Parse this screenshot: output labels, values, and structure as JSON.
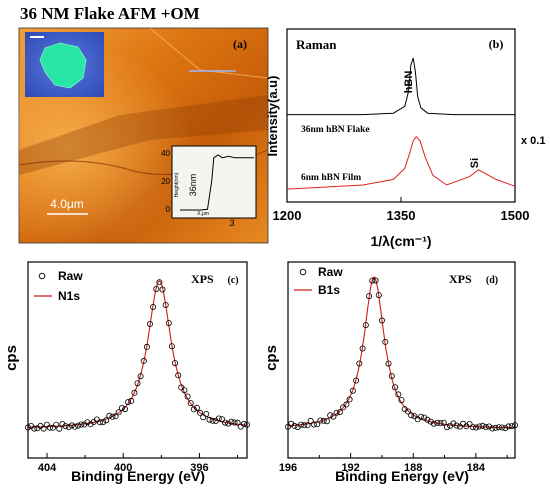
{
  "figure_title": "36 NM Flake AFM +OM",
  "colors": {
    "afm_dark": "#8a3a05",
    "afm_mid": "#d9700f",
    "afm_light": "#f6b04a",
    "om_bg": "#3a5ccf",
    "om_flake": "#27e6a6",
    "raw_marker": "#000000",
    "fit_line": "#d11a1a",
    "raman_flake": "#000000",
    "raman_film": "#e0201e"
  },
  "chart_data": [
    {
      "id": "a",
      "type": "image",
      "panel_label": "(a)",
      "scale_bar_label": "4.0μm",
      "inset": {
        "type": "line",
        "ylabel": "Height(nm)",
        "xlabel": "X,μm",
        "x_tick": "3",
        "step_label": "36nm",
        "y_ticks": [
          "40",
          "20",
          "0"
        ],
        "x": [
          0,
          0.5,
          1.0,
          1.3,
          1.5,
          1.6,
          1.8,
          2.0,
          2.3,
          2.6,
          3.0,
          3.5
        ],
        "y": [
          0,
          0,
          0,
          0.5,
          20,
          36,
          38,
          36,
          37,
          36,
          36,
          36
        ]
      }
    },
    {
      "id": "b",
      "type": "line",
      "title": "Raman",
      "panel_label": "(b)",
      "xlabel": "1/λ(cm⁻¹)",
      "ylabel": "Intensity(a.u)",
      "xlim": [
        1200,
        1500
      ],
      "x_ticks": [
        1200,
        1350,
        1500
      ],
      "annotations": {
        "peak": "hBN",
        "si": "Si",
        "scale": "x 0.1"
      },
      "series": [
        {
          "name": "36nm hBN Flake",
          "x": [
            1200,
            1300,
            1340,
            1355,
            1360,
            1363,
            1366,
            1369,
            1372,
            1376,
            1385,
            1420,
            1500
          ],
          "y": [
            0.59,
            0.59,
            0.6,
            0.65,
            0.76,
            0.95,
            1.0,
            0.9,
            0.72,
            0.64,
            0.6,
            0.59,
            0.59
          ]
        },
        {
          "name": "6nm hBN Film",
          "x": [
            1200,
            1300,
            1340,
            1355,
            1362,
            1366,
            1370,
            1375,
            1382,
            1392,
            1410,
            1440,
            1452,
            1462,
            1475,
            1500
          ],
          "y": [
            0.05,
            0.08,
            0.12,
            0.2,
            0.32,
            0.4,
            0.43,
            0.4,
            0.28,
            0.15,
            0.08,
            0.14,
            0.19,
            0.16,
            0.12,
            0.07
          ]
        }
      ]
    },
    {
      "id": "c",
      "type": "scatter",
      "title": "XPS",
      "panel_label": "(c)",
      "xlabel": "Binding Energy (eV)",
      "ylabel": "cps",
      "xlim": [
        405,
        393.5
      ],
      "x_ticks": [
        404,
        400,
        396
      ],
      "legend": {
        "raw": "Raw",
        "fit": "N1s"
      },
      "peak": {
        "center": 398.1,
        "fwhm": 1.5
      }
    },
    {
      "id": "d",
      "type": "scatter",
      "title": "XPS",
      "panel_label": "(d)",
      "xlabel": "Binding Energy (eV)",
      "ylabel": "cps",
      "xlim": [
        196,
        181.5
      ],
      "x_ticks": [
        196,
        192,
        188,
        184
      ],
      "legend": {
        "raw": "Raw",
        "fit": "B1s"
      },
      "peak": {
        "center": 190.5,
        "fwhm": 1.6
      }
    }
  ]
}
